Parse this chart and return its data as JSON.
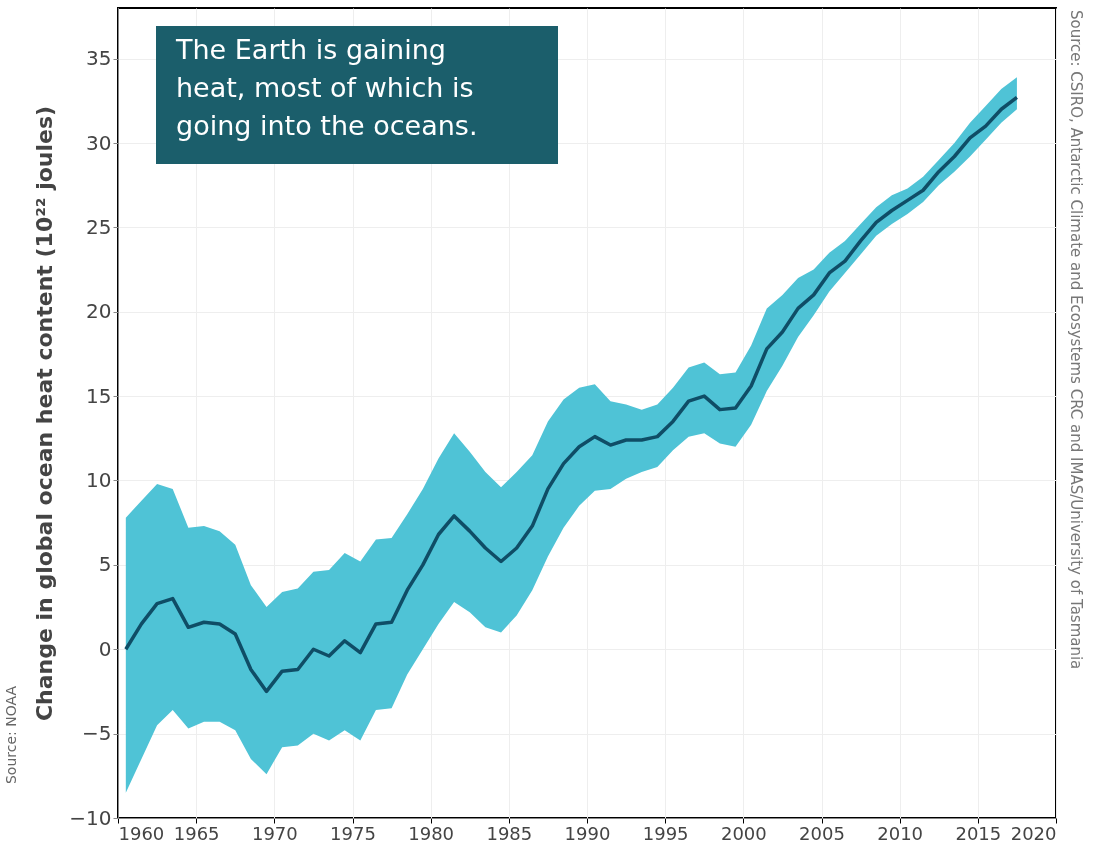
{
  "chart_data": {
    "type": "line",
    "ylabel": "Change in global ocean heat content (10²² joules)",
    "x": [
      1960.5,
      1961.5,
      1962.5,
      1963.5,
      1964.5,
      1965.5,
      1966.5,
      1967.5,
      1968.5,
      1969.5,
      1970.5,
      1971.5,
      1972.5,
      1973.5,
      1974.5,
      1975.5,
      1976.5,
      1977.5,
      1978.5,
      1979.5,
      1980.5,
      1981.5,
      1982.5,
      1983.5,
      1984.5,
      1985.5,
      1986.5,
      1987.5,
      1988.5,
      1989.5,
      1990.5,
      1991.5,
      1992.5,
      1993.5,
      1994.5,
      1995.5,
      1996.5,
      1997.5,
      1998.5,
      1999.5,
      2000.5,
      2001.5,
      2002.5,
      2003.5,
      2004.5,
      2005.5,
      2006.5,
      2007.5,
      2008.5,
      2009.5,
      2010.5,
      2011.5,
      2012.5,
      2013.5,
      2014.5,
      2015.5,
      2016.5,
      2017.5
    ],
    "series": [
      {
        "color": "#0f4d66",
        "values": [
          0,
          1.5,
          2.7,
          3.0,
          1.3,
          1.6,
          1.5,
          0.9,
          -1.2,
          -2.5,
          -1.3,
          -1.2,
          0,
          -0.4,
          0.5,
          -0.2,
          1.5,
          1.6,
          3.5,
          5.0,
          6.8,
          7.9,
          7.0,
          6.0,
          5.2,
          6.0,
          7.3,
          9.5,
          11.0,
          12.0,
          12.6,
          12.1,
          12.4,
          12.4,
          12.6,
          13.5,
          14.7,
          15.0,
          14.2,
          14.3,
          15.6,
          17.8,
          18.8,
          20.2,
          21.0,
          22.3,
          23.0,
          24.2,
          25.3,
          26.0,
          26.6,
          27.2,
          28.3,
          29.2,
          30.3,
          31.0,
          32.0,
          32.7
        ],
        "upper": [
          7.8,
          8.8,
          9.8,
          9.5,
          7.2,
          7.3,
          7.0,
          6.2,
          3.8,
          2.5,
          3.4,
          3.6,
          4.6,
          4.7,
          5.7,
          5.2,
          6.5,
          6.6,
          8.0,
          9.5,
          11.3,
          12.8,
          11.7,
          10.5,
          9.6,
          10.5,
          11.5,
          13.5,
          14.8,
          15.5,
          15.7,
          14.7,
          14.5,
          14.2,
          14.5,
          15.5,
          16.7,
          17.0,
          16.3,
          16.4,
          18.0,
          20.2,
          21.0,
          22.0,
          22.5,
          23.5,
          24.2,
          25.2,
          26.2,
          26.9,
          27.3,
          28.0,
          29.0,
          30.0,
          31.2,
          32.2,
          33.2,
          33.9
        ],
        "lower": [
          -8.5,
          -6.5,
          -4.5,
          -3.6,
          -4.7,
          -4.3,
          -4.3,
          -4.8,
          -6.5,
          -7.4,
          -5.8,
          -5.7,
          -5.0,
          -5.4,
          -4.8,
          -5.4,
          -3.6,
          -3.5,
          -1.5,
          0.0,
          1.5,
          2.8,
          2.2,
          1.3,
          1.0,
          2.0,
          3.5,
          5.5,
          7.2,
          8.5,
          9.4,
          9.5,
          10.1,
          10.5,
          10.8,
          11.8,
          12.6,
          12.8,
          12.2,
          12.0,
          13.3,
          15.3,
          16.8,
          18.5,
          19.8,
          21.2,
          22.3,
          23.4,
          24.5,
          25.2,
          25.8,
          26.5,
          27.5,
          28.3,
          29.2,
          30.2,
          31.2,
          32.0
        ]
      }
    ],
    "xlim": [
      1960,
      2020
    ],
    "xticks": [
      1960,
      1965,
      1970,
      1975,
      1980,
      1985,
      1990,
      1995,
      2000,
      2005,
      2010,
      2015,
      2020
    ],
    "ylim": [
      -10,
      38
    ],
    "yticks": [
      -10,
      -5,
      0,
      5,
      10,
      15,
      20,
      25,
      30,
      35
    ],
    "grid": true,
    "annotations": [
      "The Earth is gaining heat, most of which is going into the oceans.",
      "Source: CSIRO, Antarctic Climate and Ecosystems CRC and IMAS/University of Tasmania",
      "Source: NOAA"
    ]
  }
}
